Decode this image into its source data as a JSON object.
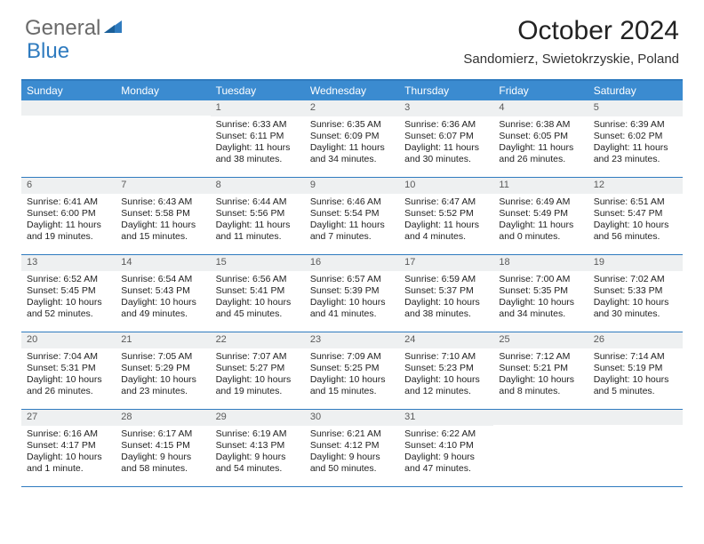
{
  "logo": {
    "general": "General",
    "blue": "Blue"
  },
  "title": "October 2024",
  "location": "Sandomierz, Swietokrzyskie, Poland",
  "colors": {
    "header_bg": "#3b8bd0",
    "border": "#2f7bbf",
    "daynum_bg": "#eef0f1",
    "text": "#222222",
    "logo_gray": "#6a6a6a",
    "logo_blue": "#2f7bbf"
  },
  "day_names": [
    "Sunday",
    "Monday",
    "Tuesday",
    "Wednesday",
    "Thursday",
    "Friday",
    "Saturday"
  ],
  "weeks": [
    [
      {
        "n": "",
        "empty": true
      },
      {
        "n": "",
        "empty": true
      },
      {
        "n": "1",
        "sunrise": "Sunrise: 6:33 AM",
        "sunset": "Sunset: 6:11 PM",
        "daylight": "Daylight: 11 hours and 38 minutes."
      },
      {
        "n": "2",
        "sunrise": "Sunrise: 6:35 AM",
        "sunset": "Sunset: 6:09 PM",
        "daylight": "Daylight: 11 hours and 34 minutes."
      },
      {
        "n": "3",
        "sunrise": "Sunrise: 6:36 AM",
        "sunset": "Sunset: 6:07 PM",
        "daylight": "Daylight: 11 hours and 30 minutes."
      },
      {
        "n": "4",
        "sunrise": "Sunrise: 6:38 AM",
        "sunset": "Sunset: 6:05 PM",
        "daylight": "Daylight: 11 hours and 26 minutes."
      },
      {
        "n": "5",
        "sunrise": "Sunrise: 6:39 AM",
        "sunset": "Sunset: 6:02 PM",
        "daylight": "Daylight: 11 hours and 23 minutes."
      }
    ],
    [
      {
        "n": "6",
        "sunrise": "Sunrise: 6:41 AM",
        "sunset": "Sunset: 6:00 PM",
        "daylight": "Daylight: 11 hours and 19 minutes."
      },
      {
        "n": "7",
        "sunrise": "Sunrise: 6:43 AM",
        "sunset": "Sunset: 5:58 PM",
        "daylight": "Daylight: 11 hours and 15 minutes."
      },
      {
        "n": "8",
        "sunrise": "Sunrise: 6:44 AM",
        "sunset": "Sunset: 5:56 PM",
        "daylight": "Daylight: 11 hours and 11 minutes."
      },
      {
        "n": "9",
        "sunrise": "Sunrise: 6:46 AM",
        "sunset": "Sunset: 5:54 PM",
        "daylight": "Daylight: 11 hours and 7 minutes."
      },
      {
        "n": "10",
        "sunrise": "Sunrise: 6:47 AM",
        "sunset": "Sunset: 5:52 PM",
        "daylight": "Daylight: 11 hours and 4 minutes."
      },
      {
        "n": "11",
        "sunrise": "Sunrise: 6:49 AM",
        "sunset": "Sunset: 5:49 PM",
        "daylight": "Daylight: 11 hours and 0 minutes."
      },
      {
        "n": "12",
        "sunrise": "Sunrise: 6:51 AM",
        "sunset": "Sunset: 5:47 PM",
        "daylight": "Daylight: 10 hours and 56 minutes."
      }
    ],
    [
      {
        "n": "13",
        "sunrise": "Sunrise: 6:52 AM",
        "sunset": "Sunset: 5:45 PM",
        "daylight": "Daylight: 10 hours and 52 minutes."
      },
      {
        "n": "14",
        "sunrise": "Sunrise: 6:54 AM",
        "sunset": "Sunset: 5:43 PM",
        "daylight": "Daylight: 10 hours and 49 minutes."
      },
      {
        "n": "15",
        "sunrise": "Sunrise: 6:56 AM",
        "sunset": "Sunset: 5:41 PM",
        "daylight": "Daylight: 10 hours and 45 minutes."
      },
      {
        "n": "16",
        "sunrise": "Sunrise: 6:57 AM",
        "sunset": "Sunset: 5:39 PM",
        "daylight": "Daylight: 10 hours and 41 minutes."
      },
      {
        "n": "17",
        "sunrise": "Sunrise: 6:59 AM",
        "sunset": "Sunset: 5:37 PM",
        "daylight": "Daylight: 10 hours and 38 minutes."
      },
      {
        "n": "18",
        "sunrise": "Sunrise: 7:00 AM",
        "sunset": "Sunset: 5:35 PM",
        "daylight": "Daylight: 10 hours and 34 minutes."
      },
      {
        "n": "19",
        "sunrise": "Sunrise: 7:02 AM",
        "sunset": "Sunset: 5:33 PM",
        "daylight": "Daylight: 10 hours and 30 minutes."
      }
    ],
    [
      {
        "n": "20",
        "sunrise": "Sunrise: 7:04 AM",
        "sunset": "Sunset: 5:31 PM",
        "daylight": "Daylight: 10 hours and 26 minutes."
      },
      {
        "n": "21",
        "sunrise": "Sunrise: 7:05 AM",
        "sunset": "Sunset: 5:29 PM",
        "daylight": "Daylight: 10 hours and 23 minutes."
      },
      {
        "n": "22",
        "sunrise": "Sunrise: 7:07 AM",
        "sunset": "Sunset: 5:27 PM",
        "daylight": "Daylight: 10 hours and 19 minutes."
      },
      {
        "n": "23",
        "sunrise": "Sunrise: 7:09 AM",
        "sunset": "Sunset: 5:25 PM",
        "daylight": "Daylight: 10 hours and 15 minutes."
      },
      {
        "n": "24",
        "sunrise": "Sunrise: 7:10 AM",
        "sunset": "Sunset: 5:23 PM",
        "daylight": "Daylight: 10 hours and 12 minutes."
      },
      {
        "n": "25",
        "sunrise": "Sunrise: 7:12 AM",
        "sunset": "Sunset: 5:21 PM",
        "daylight": "Daylight: 10 hours and 8 minutes."
      },
      {
        "n": "26",
        "sunrise": "Sunrise: 7:14 AM",
        "sunset": "Sunset: 5:19 PM",
        "daylight": "Daylight: 10 hours and 5 minutes."
      }
    ],
    [
      {
        "n": "27",
        "sunrise": "Sunrise: 6:16 AM",
        "sunset": "Sunset: 4:17 PM",
        "daylight": "Daylight: 10 hours and 1 minute."
      },
      {
        "n": "28",
        "sunrise": "Sunrise: 6:17 AM",
        "sunset": "Sunset: 4:15 PM",
        "daylight": "Daylight: 9 hours and 58 minutes."
      },
      {
        "n": "29",
        "sunrise": "Sunrise: 6:19 AM",
        "sunset": "Sunset: 4:13 PM",
        "daylight": "Daylight: 9 hours and 54 minutes."
      },
      {
        "n": "30",
        "sunrise": "Sunrise: 6:21 AM",
        "sunset": "Sunset: 4:12 PM",
        "daylight": "Daylight: 9 hours and 50 minutes."
      },
      {
        "n": "31",
        "sunrise": "Sunrise: 6:22 AM",
        "sunset": "Sunset: 4:10 PM",
        "daylight": "Daylight: 9 hours and 47 minutes."
      },
      {
        "n": "",
        "empty": true
      },
      {
        "n": "",
        "empty": true
      }
    ]
  ]
}
